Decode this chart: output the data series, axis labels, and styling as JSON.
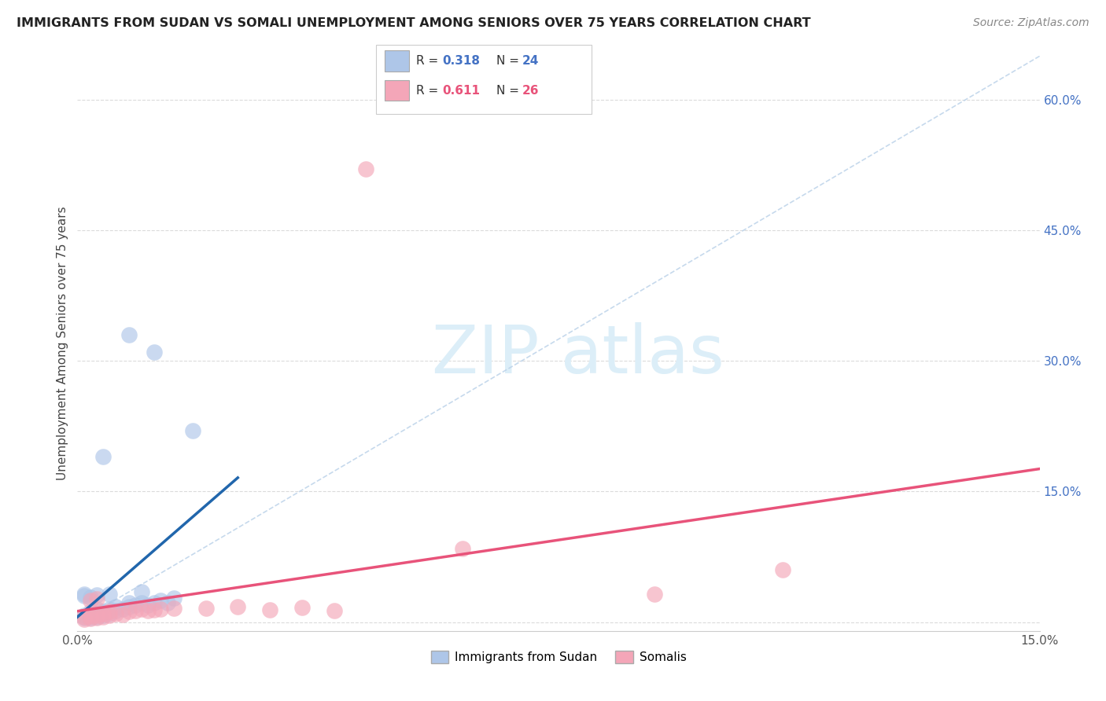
{
  "title": "IMMIGRANTS FROM SUDAN VS SOMALI UNEMPLOYMENT AMONG SENIORS OVER 75 YEARS CORRELATION CHART",
  "source": "Source: ZipAtlas.com",
  "ylabel": "Unemployment Among Seniors over 75 years",
  "xlim": [
    0.0,
    0.15
  ],
  "ylim": [
    -0.01,
    0.65
  ],
  "x_ticks": [
    0.0,
    0.05,
    0.1,
    0.15
  ],
  "x_tick_labels": [
    "0.0%",
    "",
    "",
    "15.0%"
  ],
  "y_ticks_right": [
    0.0,
    0.15,
    0.3,
    0.45,
    0.6
  ],
  "y_tick_labels_right": [
    "",
    "15.0%",
    "30.0%",
    "45.0%",
    "60.0%"
  ],
  "color_blue": "#aec6e8",
  "color_blue_line": "#2166ac",
  "color_pink": "#f4a6b8",
  "color_pink_line": "#e8537a",
  "color_ref_line": "#b8d0e8",
  "watermark_color": "#dceef8",
  "sudan_points": [
    [
      0.001,
      0.005
    ],
    [
      0.001,
      0.008
    ],
    [
      0.002,
      0.005
    ],
    [
      0.002,
      0.008
    ],
    [
      0.002,
      0.012
    ],
    [
      0.003,
      0.006
    ],
    [
      0.003,
      0.01
    ],
    [
      0.003,
      0.015
    ],
    [
      0.004,
      0.008
    ],
    [
      0.004,
      0.012
    ],
    [
      0.005,
      0.01
    ],
    [
      0.005,
      0.015
    ],
    [
      0.006,
      0.013
    ],
    [
      0.006,
      0.018
    ],
    [
      0.007,
      0.015
    ],
    [
      0.008,
      0.018
    ],
    [
      0.008,
      0.022
    ],
    [
      0.009,
      0.02
    ],
    [
      0.01,
      0.022
    ],
    [
      0.011,
      0.02
    ],
    [
      0.012,
      0.022
    ],
    [
      0.013,
      0.025
    ],
    [
      0.015,
      0.028
    ],
    [
      0.005,
      0.032
    ],
    [
      0.01,
      0.035
    ],
    [
      0.002,
      0.029
    ],
    [
      0.003,
      0.031
    ],
    [
      0.001,
      0.03
    ],
    [
      0.001,
      0.032
    ],
    [
      0.014,
      0.022
    ],
    [
      0.004,
      0.19
    ],
    [
      0.008,
      0.33
    ],
    [
      0.012,
      0.31
    ],
    [
      0.018,
      0.22
    ]
  ],
  "somali_points": [
    [
      0.001,
      0.003
    ],
    [
      0.001,
      0.006
    ],
    [
      0.002,
      0.004
    ],
    [
      0.002,
      0.007
    ],
    [
      0.003,
      0.005
    ],
    [
      0.003,
      0.008
    ],
    [
      0.004,
      0.006
    ],
    [
      0.004,
      0.01
    ],
    [
      0.005,
      0.008
    ],
    [
      0.005,
      0.012
    ],
    [
      0.006,
      0.01
    ],
    [
      0.007,
      0.009
    ],
    [
      0.008,
      0.012
    ],
    [
      0.009,
      0.013
    ],
    [
      0.01,
      0.015
    ],
    [
      0.011,
      0.013
    ],
    [
      0.012,
      0.014
    ],
    [
      0.013,
      0.015
    ],
    [
      0.015,
      0.016
    ],
    [
      0.02,
      0.016
    ],
    [
      0.025,
      0.018
    ],
    [
      0.003,
      0.027
    ],
    [
      0.035,
      0.017
    ],
    [
      0.04,
      0.013
    ],
    [
      0.06,
      0.085
    ],
    [
      0.09,
      0.032
    ],
    [
      0.045,
      0.52
    ],
    [
      0.11,
      0.06
    ],
    [
      0.002,
      0.025
    ],
    [
      0.03,
      0.014
    ]
  ],
  "background_color": "#ffffff"
}
